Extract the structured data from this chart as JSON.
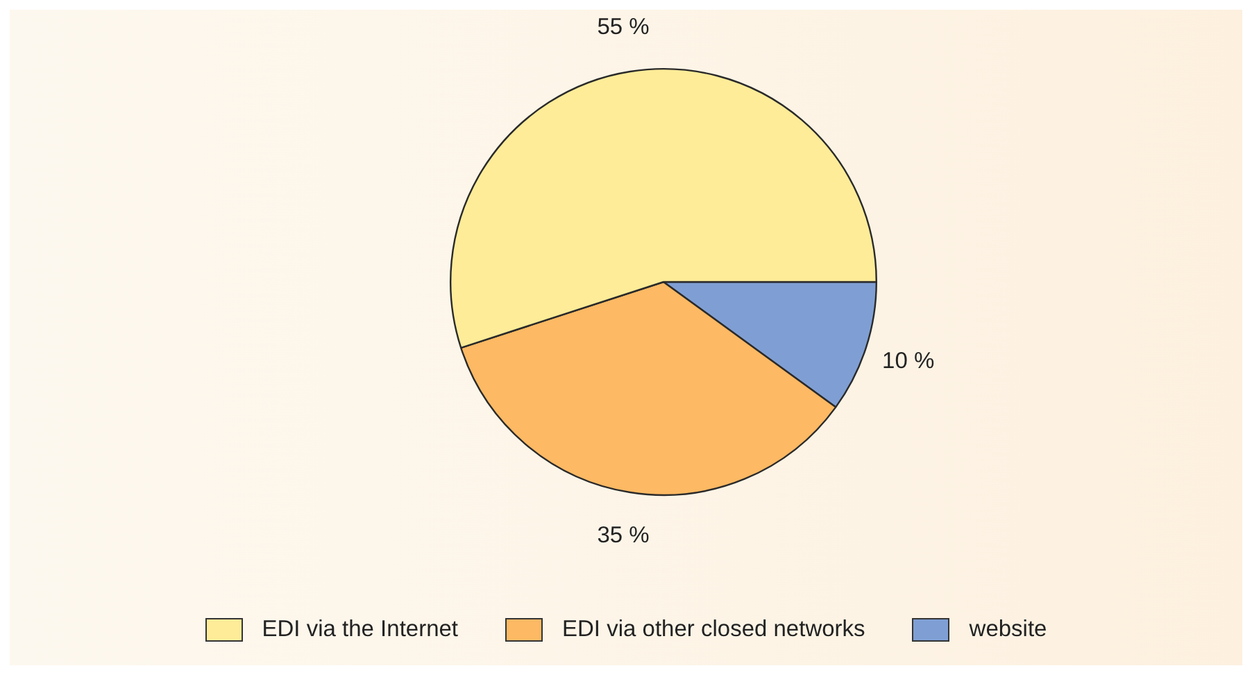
{
  "chart_data": {
    "type": "pie",
    "categories": [
      "EDI via the Internet",
      "EDI via other closed networks",
      "website"
    ],
    "values": [
      55,
      35,
      10
    ],
    "colors": [
      "#feec98",
      "#fdb963",
      "#7f9fd4"
    ],
    "value_labels": [
      "55 %",
      "35 %",
      "10 %"
    ],
    "legend": "bottom"
  }
}
